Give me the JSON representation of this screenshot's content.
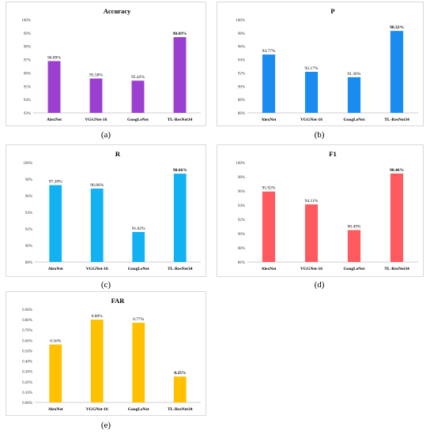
{
  "chart_data": [
    {
      "id": "a",
      "type": "bar",
      "title": "Accuracy",
      "caption": "(a)",
      "categories": [
        "AlexNet",
        "VGGNet-16",
        "GoogLeNet",
        "TL-ResNet34"
      ],
      "values": [
        96.89,
        95.58,
        95.42,
        98.69
      ],
      "value_labels": [
        "96.89%",
        "95.58%",
        "95.42%",
        "98.69%"
      ],
      "ylim": [
        93,
        100
      ],
      "yticks": [
        93,
        94,
        95,
        96,
        97,
        98,
        99,
        100
      ],
      "ytick_labels": [
        "93%",
        "94%",
        "95%",
        "96%",
        "97%",
        "98%",
        "99%",
        "100%"
      ],
      "color": "#9b3fd0",
      "grid": false,
      "xlabel": "",
      "ylabel": ""
    },
    {
      "id": "b",
      "type": "bar",
      "title": "P",
      "caption": "(b)",
      "categories": [
        "AlexNet",
        "VGGNet-16",
        "GoogLeNet",
        "TL-ResNet34"
      ],
      "values": [
        94.77,
        92.17,
        91.36,
        98.32
      ],
      "value_labels": [
        "94.77%",
        "92.17%",
        "91.36%",
        "98.32%"
      ],
      "ylim": [
        86,
        100
      ],
      "yticks": [
        86,
        88,
        90,
        92,
        94,
        96,
        98,
        100
      ],
      "ytick_labels": [
        "86%",
        "88%",
        "90%",
        "92%",
        "94%",
        "96%",
        "98%",
        "100%"
      ],
      "color": "#1a8cf0",
      "grid": false,
      "xlabel": "",
      "ylabel": ""
    },
    {
      "id": "c",
      "type": "bar",
      "title": "R",
      "caption": "(c)",
      "categories": [
        "AlexNet",
        "VGGNet-16",
        "GoogLeNet",
        "TL-ResNet34"
      ],
      "values": [
        97.28,
        96.86,
        91.62,
        98.66
      ],
      "value_labels": [
        "97.28%",
        "96.86%",
        "91.62%",
        "98.66%"
      ],
      "ylim": [
        88,
        100
      ],
      "yticks": [
        88,
        90,
        92,
        94,
        96,
        98,
        100
      ],
      "ytick_labels": [
        "88%",
        "90%",
        "92%",
        "94%",
        "96%",
        "98%",
        "100%"
      ],
      "color": "#12b2f2",
      "grid": false,
      "xlabel": "",
      "ylabel": ""
    },
    {
      "id": "d",
      "type": "bar",
      "title": "F1",
      "caption": "(d)",
      "categories": [
        "AlexNet",
        "VGGNet-16",
        "GoogLeNet",
        "TL-ResNet34"
      ],
      "values": [
        95.92,
        94.11,
        90.49,
        98.46
      ],
      "value_labels": [
        "95.92%",
        "94.11%",
        "90.49%",
        "98.46%"
      ],
      "ylim": [
        86,
        100
      ],
      "yticks": [
        86,
        88,
        90,
        92,
        94,
        96,
        98,
        100
      ],
      "ytick_labels": [
        "86%",
        "88%",
        "90%",
        "92%",
        "94%",
        "96%",
        "98%",
        "100%"
      ],
      "color": "#ff5a5f",
      "grid": false,
      "xlabel": "",
      "ylabel": ""
    },
    {
      "id": "e",
      "type": "bar",
      "title": "FAR",
      "caption": "(e)",
      "categories": [
        "AlexNet",
        "VGGNet-16",
        "GoogLeNet",
        "TL-ResNet34"
      ],
      "values": [
        0.56,
        0.8,
        0.77,
        0.25
      ],
      "value_labels": [
        "0.56%",
        "0.80%",
        "0.77%",
        "0.25%"
      ],
      "ylim": [
        0,
        0.9
      ],
      "yticks": [
        0,
        0.1,
        0.2,
        0.3,
        0.4,
        0.5,
        0.6,
        0.7,
        0.8,
        0.9
      ],
      "ytick_labels": [
        "0.00%",
        "0.10%",
        "0.20%",
        "0.30%",
        "0.40%",
        "0.50%",
        "0.60%",
        "0.70%",
        "0.80%",
        "0.90%"
      ],
      "color": "#ffc000",
      "grid": false,
      "xlabel": "",
      "ylabel": ""
    }
  ]
}
